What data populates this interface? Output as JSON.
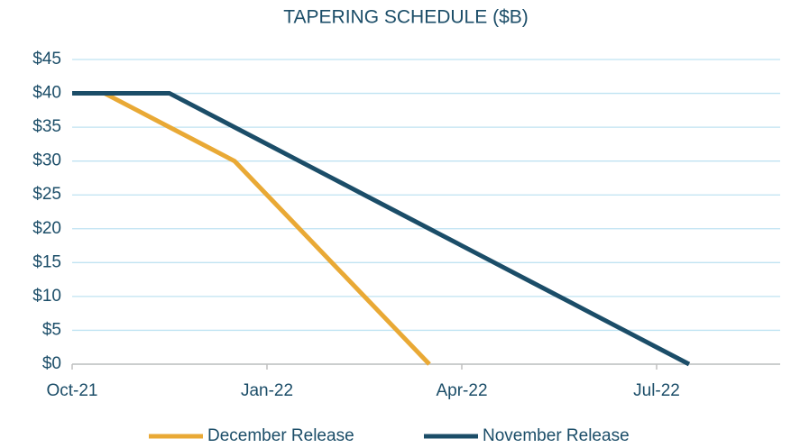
{
  "chart_data": {
    "type": "line",
    "title": "TAPERING SCHEDULE ($B)",
    "categories": [
      "Oct-21",
      null,
      null,
      null,
      null,
      null,
      "Jan-22",
      null,
      null,
      null,
      null,
      null,
      "Apr-22",
      null,
      null,
      null,
      null,
      null,
      "Jul-22",
      null,
      null,
      null
    ],
    "series": [
      {
        "name": "December Release",
        "color": "#e9a935",
        "values": [
          40,
          40,
          37.5,
          35,
          32.5,
          30,
          25,
          20,
          15,
          10,
          5,
          0,
          null,
          null,
          null,
          null,
          null,
          null,
          null,
          null,
          null,
          null
        ]
      },
      {
        "name": "November Release",
        "color": "#1b4d68",
        "values": [
          40,
          40,
          40,
          40,
          37.5,
          35,
          32.5,
          30,
          27.5,
          25,
          22.5,
          20,
          17.5,
          15,
          12.5,
          10,
          7.5,
          5,
          2.5,
          0,
          null,
          null
        ]
      }
    ],
    "ylim": [
      0,
      45
    ],
    "yticks": [
      {
        "value": 0,
        "label": "$0"
      },
      {
        "value": 5,
        "label": "$5"
      },
      {
        "value": 10,
        "label": "$10"
      },
      {
        "value": 15,
        "label": "$15"
      },
      {
        "value": 20,
        "label": "$20"
      },
      {
        "value": 25,
        "label": "$25"
      },
      {
        "value": 30,
        "label": "$30"
      },
      {
        "value": 35,
        "label": "$35"
      },
      {
        "value": 40,
        "label": "$40"
      },
      {
        "value": 45,
        "label": "$45"
      }
    ],
    "grid": true,
    "legend": "bottom"
  }
}
